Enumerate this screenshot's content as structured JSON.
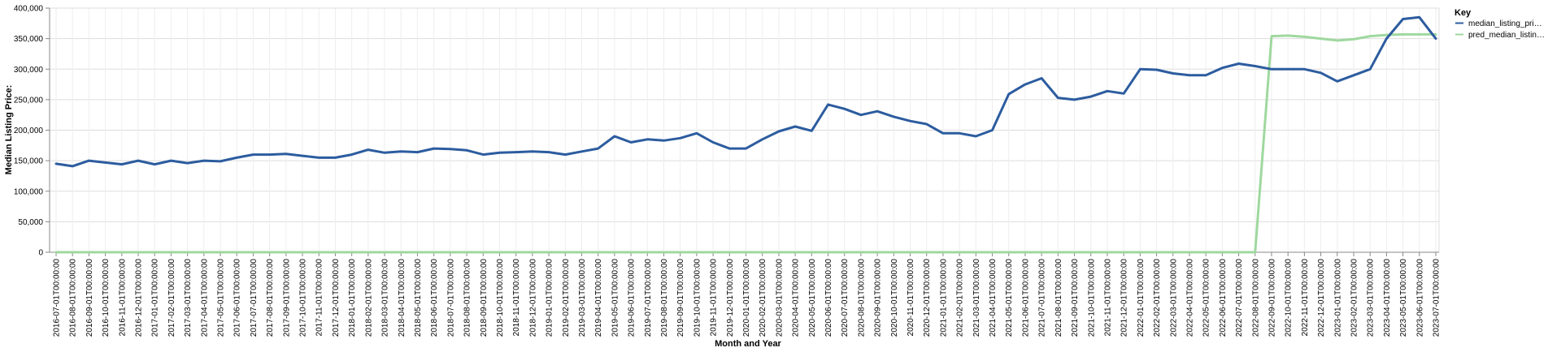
{
  "chart_data": {
    "type": "line",
    "xlabel": "Month and Year",
    "ylabel": "Median Listing Price:",
    "ylim": [
      0,
      400000
    ],
    "yticks": [
      "0",
      "50,000",
      "100,000",
      "150,000",
      "200,000",
      "250,000",
      "300,000",
      "350,000",
      "400,000"
    ],
    "grid": true,
    "legend": {
      "title": "Key",
      "position": "top-right",
      "entries": [
        "median_listing_pri…",
        "pred_median_listin…"
      ]
    },
    "x": [
      "2016-07-01T00:00:00",
      "2016-08-01T00:00:00",
      "2016-09-01T00:00:00",
      "2016-10-01T00:00:00",
      "2016-11-01T00:00:00",
      "2016-12-01T00:00:00",
      "2017-01-01T00:00:00",
      "2017-02-01T00:00:00",
      "2017-03-01T00:00:00",
      "2017-04-01T00:00:00",
      "2017-05-01T00:00:00",
      "2017-06-01T00:00:00",
      "2017-07-01T00:00:00",
      "2017-08-01T00:00:00",
      "2017-09-01T00:00:00",
      "2017-10-01T00:00:00",
      "2017-11-01T00:00:00",
      "2017-12-01T00:00:00",
      "2018-01-01T00:00:00",
      "2018-02-01T00:00:00",
      "2018-03-01T00:00:00",
      "2018-04-01T00:00:00",
      "2018-05-01T00:00:00",
      "2018-06-01T00:00:00",
      "2018-07-01T00:00:00",
      "2018-08-01T00:00:00",
      "2018-09-01T00:00:00",
      "2018-10-01T00:00:00",
      "2018-11-01T00:00:00",
      "2018-12-01T00:00:00",
      "2019-01-01T00:00:00",
      "2019-02-01T00:00:00",
      "2019-03-01T00:00:00",
      "2019-04-01T00:00:00",
      "2019-05-01T00:00:00",
      "2019-06-01T00:00:00",
      "2019-07-01T00:00:00",
      "2019-08-01T00:00:00",
      "2019-09-01T00:00:00",
      "2019-10-01T00:00:00",
      "2019-11-01T00:00:00",
      "2019-12-01T00:00:00",
      "2020-01-01T00:00:00",
      "2020-02-01T00:00:00",
      "2020-03-01T00:00:00",
      "2020-04-01T00:00:00",
      "2020-05-01T00:00:00",
      "2020-06-01T00:00:00",
      "2020-07-01T00:00:00",
      "2020-08-01T00:00:00",
      "2020-09-01T00:00:00",
      "2020-10-01T00:00:00",
      "2020-11-01T00:00:00",
      "2020-12-01T00:00:00",
      "2021-01-01T00:00:00",
      "2021-02-01T00:00:00",
      "2021-03-01T00:00:00",
      "2021-04-01T00:00:00",
      "2021-05-01T00:00:00",
      "2021-06-01T00:00:00",
      "2021-07-01T00:00:00",
      "2021-08-01T00:00:00",
      "2021-09-01T00:00:00",
      "2021-10-01T00:00:00",
      "2021-11-01T00:00:00",
      "2021-12-01T00:00:00",
      "2022-01-01T00:00:00",
      "2022-02-01T00:00:00",
      "2022-03-01T00:00:00",
      "2022-04-01T00:00:00",
      "2022-05-01T00:00:00",
      "2022-06-01T00:00:00",
      "2022-07-01T00:00:00",
      "2022-08-01T00:00:00",
      "2022-09-01T00:00:00",
      "2022-10-01T00:00:00",
      "2022-11-01T00:00:00",
      "2022-12-01T00:00:00",
      "2023-01-01T00:00:00",
      "2023-02-01T00:00:00",
      "2023-03-01T00:00:00",
      "2023-04-01T00:00:00",
      "2023-05-01T00:00:00",
      "2023-06-01T00:00:00",
      "2023-07-01T00:00:00"
    ],
    "series": [
      {
        "name": "median_listing_pri…",
        "color": "#2c5c9f",
        "values": [
          145000,
          141000,
          150000,
          147000,
          144000,
          150000,
          144000,
          150000,
          146000,
          150000,
          149000,
          155000,
          160000,
          160000,
          161000,
          158000,
          155000,
          155000,
          160000,
          168000,
          163000,
          165000,
          164000,
          170000,
          169000,
          167000,
          160000,
          163000,
          164000,
          165000,
          164000,
          160000,
          165000,
          170000,
          190000,
          180000,
          185000,
          183000,
          187000,
          195000,
          180000,
          170000,
          170000,
          185000,
          198000,
          206000,
          199000,
          242000,
          235000,
          225000,
          231000,
          222000,
          215000,
          210000,
          195000,
          195000,
          190000,
          200000,
          259000,
          275000,
          285000,
          253000,
          250000,
          255000,
          264000,
          260000,
          300000,
          299000,
          293000,
          290000,
          290000,
          302000,
          309000,
          305000,
          300000,
          300000,
          300000,
          294000,
          280000,
          290000,
          300000,
          350000,
          382000,
          385000,
          350000
        ]
      },
      {
        "name": "pred_median_listin…",
        "color": "#9fd89f",
        "values": [
          0,
          0,
          0,
          0,
          0,
          0,
          0,
          0,
          0,
          0,
          0,
          0,
          0,
          0,
          0,
          0,
          0,
          0,
          0,
          0,
          0,
          0,
          0,
          0,
          0,
          0,
          0,
          0,
          0,
          0,
          0,
          0,
          0,
          0,
          0,
          0,
          0,
          0,
          0,
          0,
          0,
          0,
          0,
          0,
          0,
          0,
          0,
          0,
          0,
          0,
          0,
          0,
          0,
          0,
          0,
          0,
          0,
          0,
          0,
          0,
          0,
          0,
          0,
          0,
          0,
          0,
          0,
          0,
          0,
          0,
          0,
          0,
          0,
          0,
          354000,
          355000,
          353000,
          350000,
          347000,
          349000,
          354000,
          356000,
          357000,
          357000,
          357000
        ]
      }
    ]
  }
}
